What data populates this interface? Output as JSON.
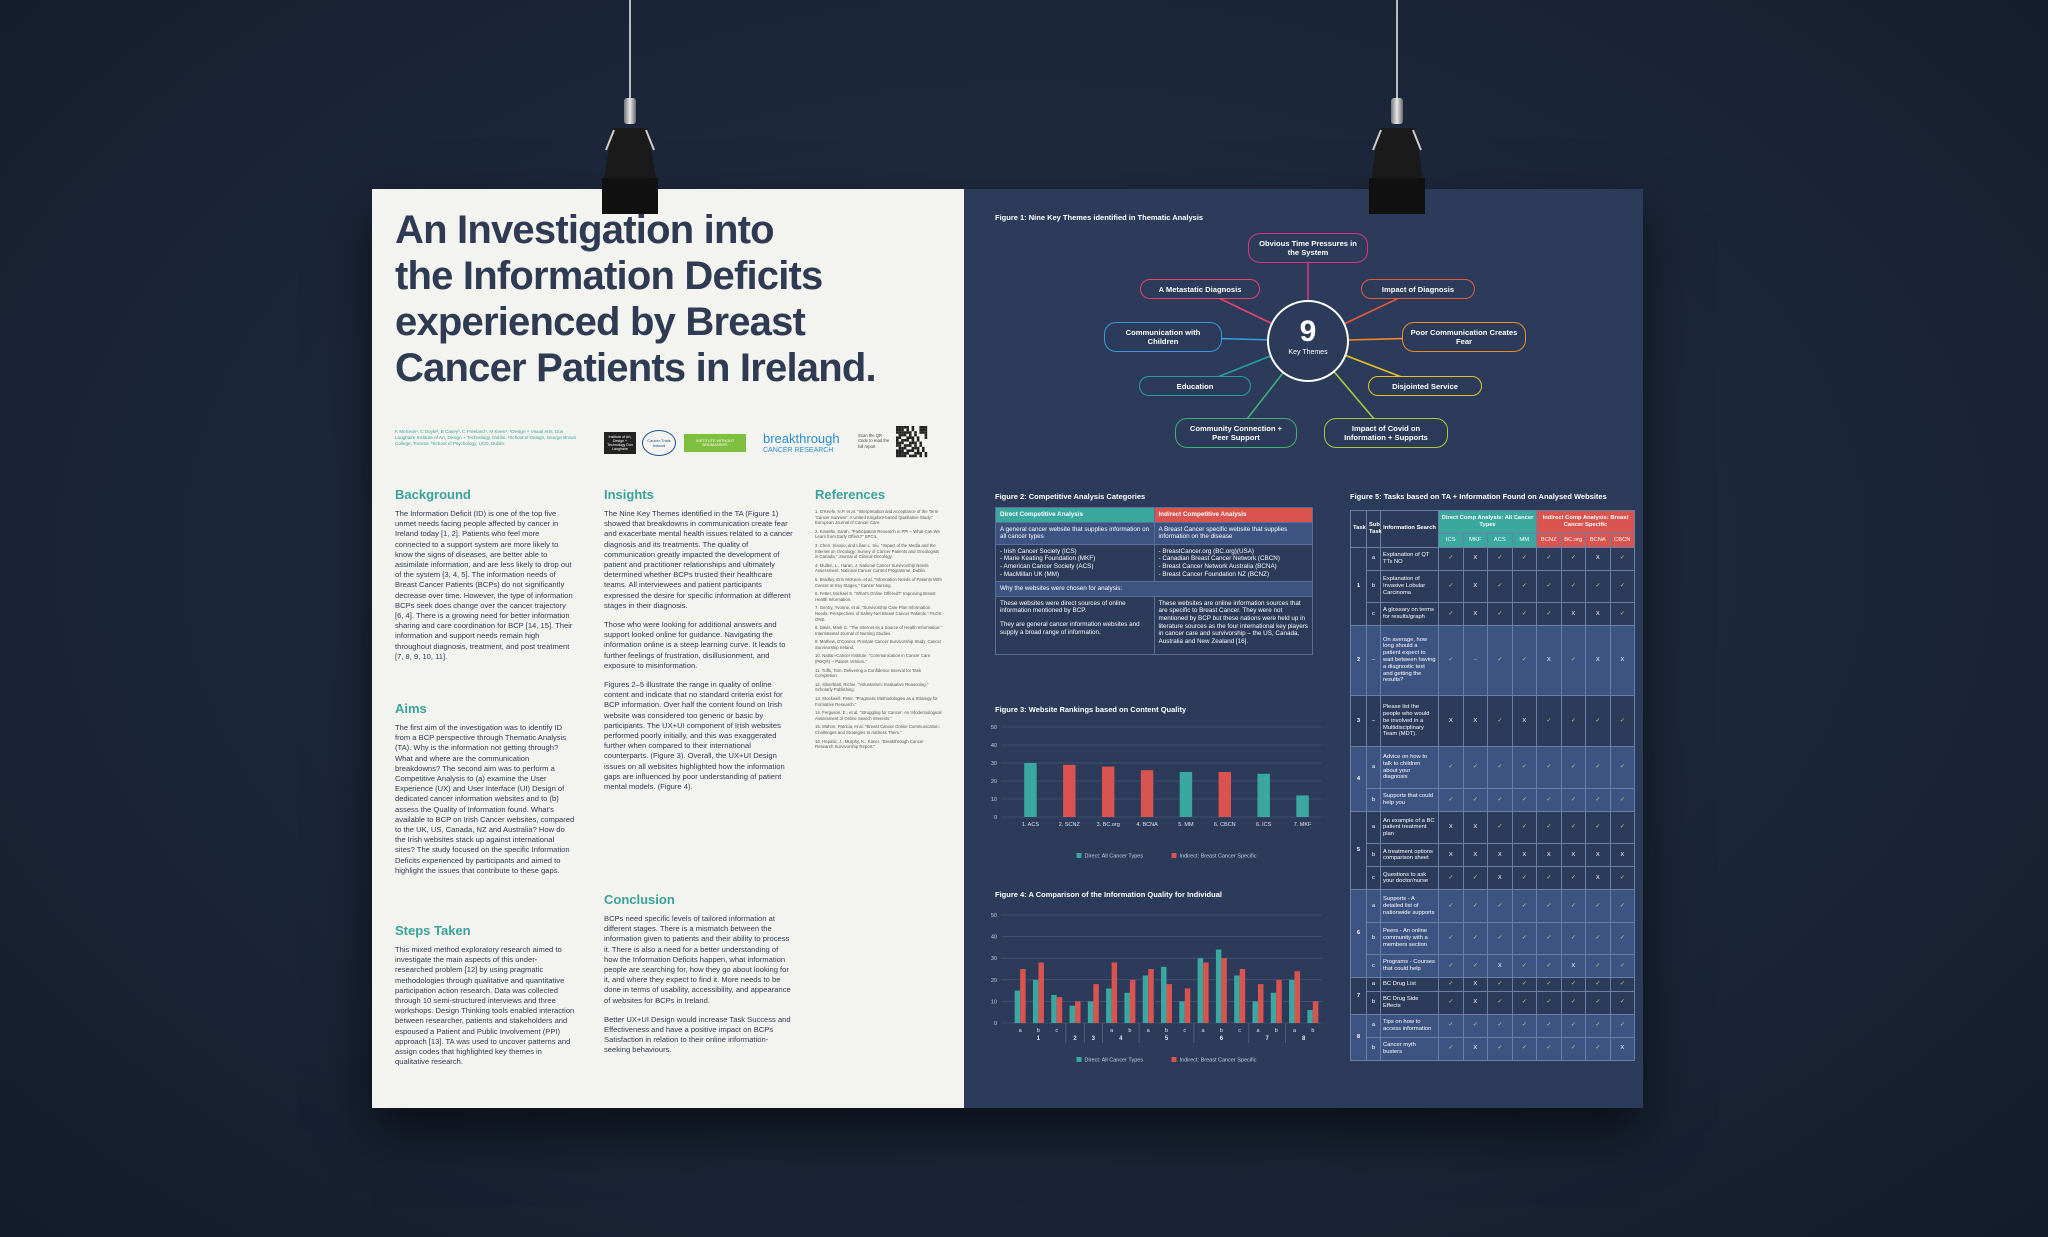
{
  "poster": {
    "title": [
      "An Investigation into",
      "the Information Deficits",
      "experienced by Breast",
      "Cancer Patients in Ireland."
    ],
    "authors": "K McKeon¹, C Doyle², B Casey³, C Freeland⁴, M Keen⁵. ¹Design + Visual Arts, Dún Laoghaire Institute of Art, Design + Technology, Dublin. ²School of Design, George Brown College, Toronto. ³School of Psychology, UCD, Dublin.",
    "logos": [
      "Institute of Art, Design + Technology Dún Laoghaire",
      "Cancer Trials Ireland",
      "INSTITUTE WITHOUT BOUNDARIES",
      "breakthrough",
      "CANCER RESEARCH"
    ],
    "qr_caption": "Scan the QR Code to read the full report",
    "background": {
      "heading": "Background",
      "paragraphs": [
        "The Information Deficit (ID) is one of the top five unmet needs facing people affected by cancer in Ireland today [1, 2]. Patients who feel more connected to a support system are more likely to know the signs of diseases, are better able to assimilate information, and are less likely to drop out of the system [3, 4, 5]. The information needs of Breast Cancer Patients (BCPs) do not significantly decrease over time. However, the type of information BCPs seek does change over the cancer trajectory [6, 4]. There is a growing need for better information sharing and care coordination for BCP [14, 15]. Their information and support needs remain high throughout diagnosis, treatment, and post treatment [7, 8, 9, 10, 11]."
      ]
    },
    "aims": {
      "heading": "Aims",
      "paragraphs": [
        "The first aim of the investigation was to identify ID from a BCP perspective through Thematic Analysis (TA). Why is the information not getting through? What and where are the communication breakdowns? The second aim was to perform a Competitive Analysis to (a) examine the User Experience (UX) and User Interface (UI) Design of dedicated cancer information websites and to (b) assess the Quality of Information found. What's available to BCP on Irish Cancer websites, compared to the UK, US, Canada, NZ and Australia? How do the Irish websites stack up against international sites? The study focused on the specific Information Deficits experienced by participants and aimed to highlight the issues that contribute to these gaps."
      ]
    },
    "steps": {
      "heading": "Steps Taken",
      "paragraphs": [
        "This mixed method exploratory research aimed to investigate the main aspects of this under-researched problem [12] by using pragmatic methodologies through qualitative and quantitative participation action research. Data was collected through 10 semi-structured interviews and three workshops. Design Thinking tools enabled interaction between researcher, patients and stakeholders and espoused a Patient and Public Involvement (PPI) approach [13]. TA was used to uncover patterns and assign codes that highlighted key themes in qualitative research."
      ]
    },
    "insights": {
      "heading": "Insights",
      "paragraphs": [
        "The Nine Key Themes identified in the TA (Figure 1) showed that breakdowns in communication create fear and exacerbate mental health issues related to a cancer diagnosis and its treatments. The quality of communication greatly impacted the development of patient and practitioner relationships and ultimately determined whether BCPs trusted their healthcare teams. All interviewees and patient participants expressed the desire for specific information at different stages in their diagnosis.",
        "Those who were looking for additional answers and support looked online for guidance. Navigating the information online is a steep learning curve. It leads to further feelings of frustration, disillusionment, and exposure to misinformation.",
        "Figures 2–5 illustrate the range in quality of online content and indicate that no standard criteria exist for BCP information. Over half the content found on Irish website was considered too generic or basic by participants. The UX+UI component of Irish websites performed poorly initially, and this was exaggerated further when compared to their international counterparts. (Figure 3). Overall, the UX+UI Design issues on all websites highlighted how the information gaps are influenced by poor understanding of patient mental models. (Figure 4)."
      ]
    },
    "conclusion": {
      "heading": "Conclusion",
      "paragraphs": [
        "BCPs need specific levels of tailored information at different stages. There is a mismatch between the information given to patients and their ability to process it. There is also a need for a better understanding of how the Information Deficits happen, what information people are searching for, how they go about looking for it, and where they expect to find it. More needs to be done in terms of usability, accessibility, and appearance of websites for BCPs in Ireland.",
        "Better UX+UI Design would increase Task Success and Effectiveness and have a positive impact on BCPs Satisfaction in relation to their online information-seeking behaviours."
      ]
    },
    "references": {
      "heading": "References",
      "items": [
        "1. O'Keefe, N.P. et al. \"Interpretation and Acceptance of the Term 'Cancer Survivor': A United Kingdom-based Qualitative Study.\" European Journal of Cancer Care.",
        "2. Kinsella, Sarah. \"Participation Research in PPI – What Can We Learn from Early Offers?\" SPCIL.",
        "3. Chen, Xiaoxu, and Lilian L. Siu. \"Impact of the Media and the Internet on Oncology: Survey of Cancer Patients and Oncologists in Canada.\" Journal of Clinical Oncology.",
        "4. Mullen, L., Haran, J. National Cancer Survivorship Needs Assessment. National Cancer Control Programme, Dublin.",
        "5. Bradley, Erin McKeon, et al. \"Information Needs of Patients With Cancer at Key Stages.\" Cancer Nursing.",
        "6. Fetter, Michael S. \"What's Online Offered?\" Improving Breast Health Information.",
        "7. Gentry, Yvonne, et al. \"Survivorship Care Plan Information Needs: Perspectives of Safety-Net Breast Cancer Patients.\" PLOS ONE.",
        "8. Davis, Mark G. \"The Internet as a Source of Health Information.\" International Journal of Nursing Studies.",
        "9. Mathew, O'Connor. Prostate Cancer Survivorship Study. Cancer Survivorship Ireland.",
        "10. Nattan-Cancer Institute. \"Communication in Cancer Care (PDQ®) – Patient Version.\"",
        "11. Tuffs, Tom. Delivering a Confidence Interval for Task Completion.",
        "12. Silverblatt, Richie. \"Voluntarism: Evaluative Reasoning.\" Scholarly Publishing.",
        "13. Stockwell, Peter. \"Pragmatic Methodologies as a Strategy for Formative Research.\"",
        "14. Ferguson, E., et al. \"Struggling for Cancer: An Infodemiological Assessment of Online Search Interests.\"",
        "15. Mahon, Patricia, et al. \"Breast Cancer Online Communication: Challenges and Strategies to Address Them.\"",
        "16. Hepatic, J., Murphy, K., Kaner. \"Breakthrough Cancer Research Survivorship Report.\""
      ]
    }
  },
  "figure1": {
    "title": "Figure 1: Nine Key Themes identified in Thematic Analysis",
    "center_value": 9,
    "center_label": "Key Themes",
    "themes": [
      {
        "label": "Obvious Time Pressures in the System",
        "color": "#d8357f"
      },
      {
        "label": "A Metastatic Diagnosis",
        "color": "#e2456e"
      },
      {
        "label": "Impact of Diagnosis",
        "color": "#e65a3c"
      },
      {
        "label": "Communication with Children",
        "color": "#3b9ad8"
      },
      {
        "label": "Poor Communication Creates Fear",
        "color": "#f08b25"
      },
      {
        "label": "Education",
        "color": "#2a9e9b"
      },
      {
        "label": "Disjointed Service",
        "color": "#e6c22a"
      },
      {
        "label": "Community Connection + Peer Support",
        "color": "#3fae77"
      },
      {
        "label": "Impact of Covid on Information + Supports",
        "color": "#a8c93b"
      }
    ]
  },
  "figure2": {
    "title": "Figure 2: Competitive Analysis Categories",
    "header": [
      "Direct Competitive Analysis",
      "Indirect Competitive Analysis"
    ],
    "definition": [
      "A general cancer website that supplies information on all cancer types",
      "A Breast Cancer specific website that supplies information on the disease"
    ],
    "sites": [
      [
        "- Irish Cancer Society (ICS)",
        "- Marie Keating Foundation (MKF)",
        "- American Cancer Society (ACS)",
        "- MacMillan UK (MM)"
      ],
      [
        "- BreastCancer.org (BC.org)(USA)",
        "- Canadian Breast Cancer Network (CBCN)",
        "- Breast Cancer Network Australia (BCNA)",
        "- Breast Cancer Foundation NZ (BCNZ)"
      ]
    ],
    "why_heading": "Why the websites were chosen for analysis:",
    "why": [
      [
        "These websites were direct sources of online information mentioned by BCP.",
        "They are general cancer information websites and supply a broad range of information."
      ],
      [
        "These websites are online information sources that are specific to Breast Cancer. They were not mentioned by BCP but these nations were held up in literature sources as the four international key players in cancer care and survivorship – the US, Canada, Australia and New Zealand [16]."
      ]
    ]
  },
  "chart_data": [
    {
      "type": "bar",
      "title": "Figure 3: Website Rankings based on Content Quality",
      "categories": [
        "1. ACS",
        "2. SCNZ",
        "3. BC.org",
        "4. BCNA",
        "5. MM",
        "6. CBCN",
        "6. ICS",
        "7. MKF"
      ],
      "series": [
        {
          "name": "Direct: All Cancer Types",
          "color": "#3aa8a0",
          "values": [
            30,
            null,
            null,
            null,
            25,
            null,
            24,
            12
          ]
        },
        {
          "name": "Indirect: Breast Cancer Specific",
          "color": "#d9534f",
          "values": [
            null,
            29,
            28,
            26,
            null,
            25,
            null,
            null
          ]
        }
      ],
      "ylim": [
        0,
        50
      ],
      "yticks": [
        0,
        10,
        20,
        30,
        40,
        50
      ],
      "grid": true
    },
    {
      "type": "grouped_bar",
      "title": "Figure 4: A Comparison of the Information Quality for Individual",
      "categories": [
        "a",
        "b",
        "c",
        null,
        null,
        "a",
        "b",
        "a",
        "b",
        "c",
        "a",
        "b",
        "c",
        "a",
        "b",
        "a",
        "b"
      ],
      "category_groups": [
        "1",
        "1",
        "1",
        "2",
        "3",
        "4",
        "4",
        "5",
        "5",
        "5",
        "6",
        "6",
        "6",
        "7",
        "7",
        "8",
        "8"
      ],
      "series": [
        {
          "name": "Direct: All Cancer Types",
          "color": "#3aa8a0",
          "values": [
            15,
            20,
            13,
            8,
            10,
            16,
            14,
            22,
            26,
            10,
            30,
            34,
            22,
            10,
            14,
            20,
            6
          ]
        },
        {
          "name": "Indirect: Breast Cancer Specific",
          "color": "#d9534f",
          "values": [
            25,
            28,
            12,
            10,
            18,
            28,
            20,
            25,
            18,
            16,
            28,
            30,
            25,
            18,
            20,
            24,
            10
          ]
        }
      ],
      "ylim": [
        0,
        50
      ],
      "yticks": [
        0,
        10,
        20,
        30,
        40,
        50
      ],
      "grid": true
    }
  ],
  "figure5": {
    "title": "Figure 5: Tasks based on TA + Information Found on Analysed Websites",
    "headers": [
      "Task",
      "Sub Task",
      "Information Search"
    ],
    "direct_heading": "Direct Comp Analysis: All Cancer Types",
    "indirect_heading": "Indirect Comp Analysis: Breast Cancer Specific",
    "direct_sites": [
      "ICS",
      "MKF",
      "ACS",
      "MM"
    ],
    "indirect_sites": [
      "BCNZ",
      "BC.org",
      "BCNA",
      "CBCN"
    ],
    "tasks": [
      {
        "task": "1",
        "rows": [
          {
            "sub": "a",
            "search": "Explanation of QT TTs NO",
            "marks": [
              "✓",
              "X",
              "✓",
              "✓",
              "✓",
              "✓",
              "X",
              "✓"
            ]
          },
          {
            "sub": "b",
            "search": "Explanation of Invasive Lobular Carcinoma",
            "marks": [
              "✓",
              "X",
              "✓",
              "✓",
              "✓",
              "✓",
              "✓",
              "✓"
            ]
          },
          {
            "sub": "c",
            "search": "A glossary on terms for results/graph",
            "marks": [
              "✓",
              "X",
              "✓",
              "✓",
              "✓",
              "X",
              "X",
              "✓"
            ]
          }
        ]
      },
      {
        "task": "2",
        "rows": [
          {
            "sub": "–",
            "search": "On average, how long should a patient expect to wait between having a diagnostic test and getting the results?",
            "marks": [
              "✓",
              "–",
              "✓",
              "✓",
              "X",
              "✓",
              "X",
              "X"
            ]
          }
        ]
      },
      {
        "task": "3",
        "rows": [
          {
            "sub": "–",
            "search": "Please list the people who would be involved in a Multidisciplinary Team (MDT).",
            "marks": [
              "X",
              "X",
              "✓",
              "X",
              "✓",
              "✓",
              "✓",
              "✓"
            ]
          }
        ]
      },
      {
        "task": "4",
        "rows": [
          {
            "sub": "a",
            "search": "Advice on how to talk to children about your diagnosis",
            "marks": [
              "✓",
              "✓",
              "✓",
              "✓",
              "✓",
              "✓",
              "✓",
              "✓"
            ]
          },
          {
            "sub": "b",
            "search": "Supports that could help you",
            "marks": [
              "✓",
              "✓",
              "✓",
              "✓",
              "✓",
              "✓",
              "✓",
              "✓"
            ]
          }
        ]
      },
      {
        "task": "5",
        "rows": [
          {
            "sub": "a",
            "search": "An example of a BC patient treatment plan",
            "marks": [
              "X",
              "X",
              "✓",
              "✓",
              "✓",
              "✓",
              "✓",
              "✓"
            ]
          },
          {
            "sub": "b",
            "search": "A treatment options comparison sheet",
            "marks": [
              "X",
              "X",
              "X",
              "X",
              "X",
              "X",
              "X",
              "X"
            ]
          },
          {
            "sub": "c",
            "search": "Questions to ask your doctor/nurse",
            "marks": [
              "✓",
              "✓",
              "X",
              "✓",
              "✓",
              "✓",
              "X",
              "✓"
            ]
          }
        ]
      },
      {
        "task": "6",
        "rows": [
          {
            "sub": "a",
            "search": "Supports - A detailed list of nationwide supports",
            "marks": [
              "✓",
              "✓",
              "✓",
              "✓",
              "✓",
              "✓",
              "✓",
              "✓"
            ]
          },
          {
            "sub": "b",
            "search": "Peers - An online community with a members section",
            "marks": [
              "✓",
              "✓",
              "✓",
              "✓",
              "✓",
              "✓",
              "✓",
              "✓"
            ]
          },
          {
            "sub": "c",
            "search": "Programs - Courses that could help",
            "marks": [
              "✓",
              "✓",
              "X",
              "✓",
              "✓",
              "X",
              "✓",
              "✓"
            ]
          }
        ]
      },
      {
        "task": "7",
        "rows": [
          {
            "sub": "a",
            "search": "BC Drug List",
            "marks": [
              "✓",
              "X",
              "✓",
              "✓",
              "✓",
              "✓",
              "✓",
              "✓"
            ]
          },
          {
            "sub": "b",
            "search": "BC Drug Side Effects",
            "marks": [
              "✓",
              "X",
              "✓",
              "✓",
              "✓",
              "✓",
              "✓",
              "✓"
            ]
          }
        ]
      },
      {
        "task": "8",
        "rows": [
          {
            "sub": "a",
            "search": "Tips on how to access information",
            "marks": [
              "✓",
              "✓",
              "✓",
              "✓",
              "✓",
              "✓",
              "✓",
              "✓"
            ]
          },
          {
            "sub": "b",
            "search": "Cancer myth busters",
            "marks": [
              "✓",
              "X",
              "✓",
              "✓",
              "✓",
              "✓",
              "✓",
              "X"
            ]
          }
        ]
      }
    ]
  }
}
